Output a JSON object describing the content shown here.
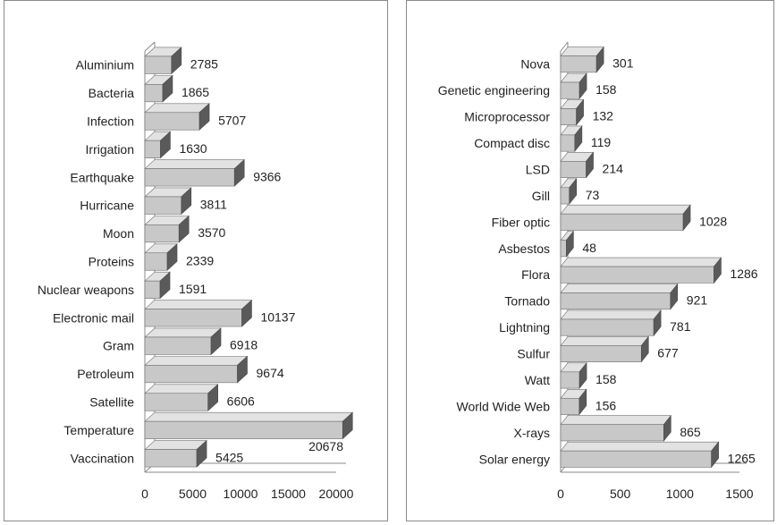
{
  "chart_data": [
    {
      "type": "bar",
      "orientation": "horizontal",
      "title": "",
      "xlabel": "",
      "ylabel": "",
      "xlim": [
        0,
        20000
      ],
      "ticks": [
        0,
        5000,
        10000,
        15000,
        20000
      ],
      "tick_labels": [
        "0",
        "5000",
        "10000",
        "15000",
        "20000"
      ],
      "grid": false,
      "categories": [
        "Aluminium",
        "Bacteria",
        "Infection",
        "Irrigation",
        "Earthquake",
        "Hurricane",
        "Moon",
        "Proteins",
        "Nuclear weapons",
        "Electronic mail",
        "Gram",
        "Petroleum",
        "Satellite",
        "Temperature",
        "Vaccination"
      ],
      "values": [
        2785,
        1865,
        5707,
        1630,
        9366,
        3811,
        3570,
        2339,
        1591,
        10137,
        6918,
        9674,
        6606,
        20678,
        5425
      ],
      "value_labels": [
        "2785",
        "1865",
        "5707",
        "1630",
        "9366",
        "3811",
        "3570",
        "2339",
        "1591",
        "10137",
        "6918",
        "9674",
        "6606",
        "20678",
        "5425"
      ],
      "bar_color": "#c8c8c8"
    },
    {
      "type": "bar",
      "orientation": "horizontal",
      "title": "",
      "xlabel": "",
      "ylabel": "",
      "xlim": [
        0,
        1500
      ],
      "ticks": [
        0,
        500,
        1000,
        1500
      ],
      "tick_labels": [
        "0",
        "500",
        "1000",
        "1500"
      ],
      "grid": false,
      "categories": [
        "Nova",
        "Genetic engineering",
        "Microprocessor",
        "Compact disc",
        "LSD",
        "Gill",
        "Fiber optic",
        "Asbestos",
        "Flora",
        "Tornado",
        "Lightning",
        "Sulfur",
        "Watt",
        "World Wide Web",
        "X-rays",
        "Solar energy"
      ],
      "values": [
        301,
        158,
        132,
        119,
        214,
        73,
        1028,
        48,
        1286,
        921,
        781,
        677,
        158,
        156,
        865,
        1265
      ],
      "value_labels": [
        "301",
        "158",
        "132",
        "119",
        "214",
        "73",
        "1028",
        "48",
        "1286",
        "921",
        "781",
        "677",
        "158",
        "156",
        "865",
        "1265"
      ],
      "bar_color": "#c8c8c8"
    }
  ]
}
